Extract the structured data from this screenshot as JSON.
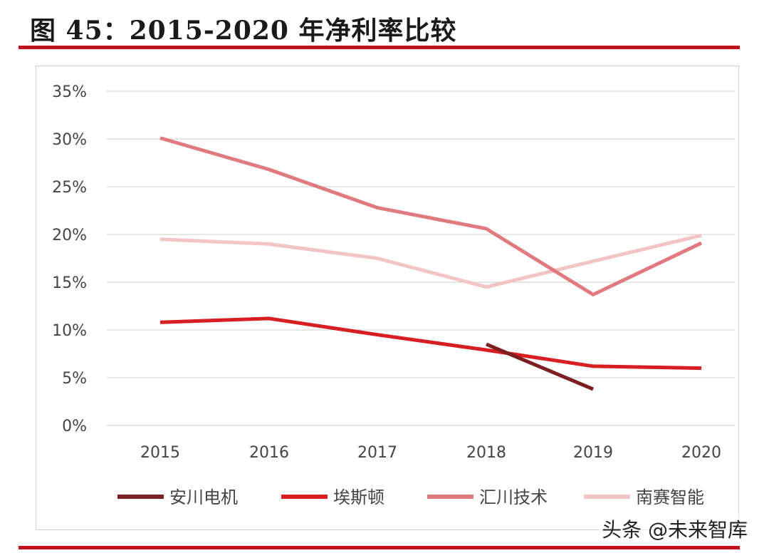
{
  "title": "图 45：2015-2020 年净利率比较",
  "watermark": "头条 @未来智库",
  "chart_data": {
    "type": "line",
    "categories": [
      "2015",
      "2016",
      "2017",
      "2018",
      "2019",
      "2020"
    ],
    "y_ticks": [
      "0%",
      "5%",
      "10%",
      "15%",
      "20%",
      "25%",
      "30%",
      "35%"
    ],
    "ylim": [
      0,
      35
    ],
    "grid": true,
    "legend_position": "bottom",
    "series": [
      {
        "name": "安川电机",
        "color": "#7b1f22",
        "values": [
          null,
          null,
          null,
          8.5,
          3.8,
          null
        ]
      },
      {
        "name": "埃斯顿",
        "color": "#d81e22",
        "values": [
          10.8,
          11.2,
          9.5,
          7.9,
          6.2,
          6.0
        ]
      },
      {
        "name": "汇川技术",
        "color": "#e07a7e",
        "values": [
          30.1,
          26.8,
          22.8,
          20.6,
          13.7,
          19.1
        ]
      },
      {
        "name": "南赛智能",
        "color": "#f2c4c4",
        "values": [
          19.5,
          19.0,
          17.5,
          14.5,
          17.2,
          19.9
        ]
      }
    ]
  }
}
